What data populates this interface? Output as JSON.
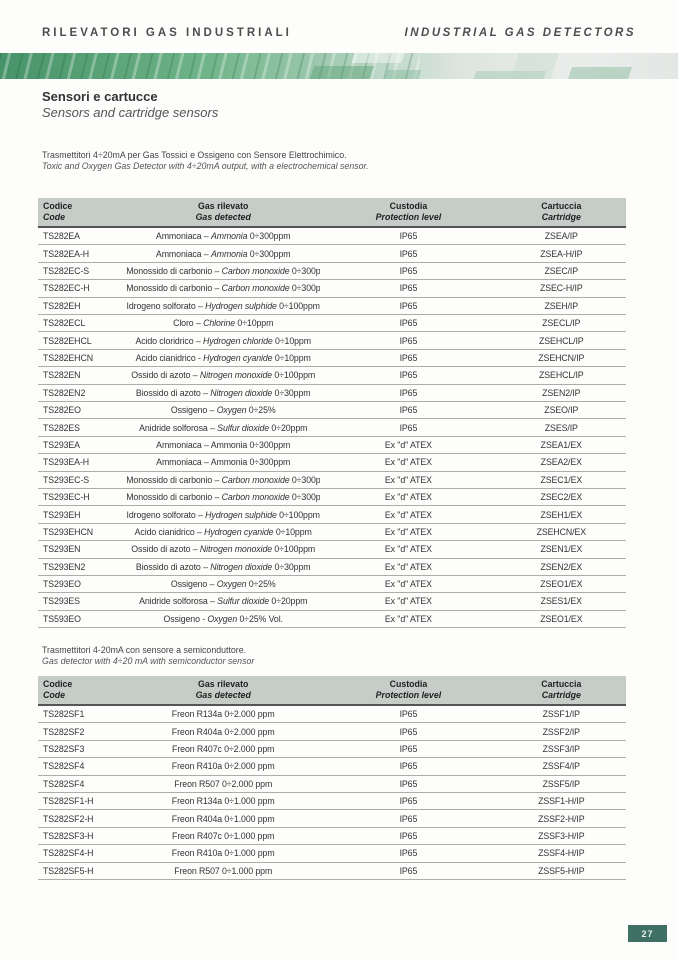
{
  "page": {
    "header_left": "RILEVATORI GAS INDUSTRIALI",
    "header_right": "INDUSTRIAL GAS DETECTORS",
    "title_it": "Sensori e cartucce",
    "title_en": "Sensors and cartridge sensors",
    "page_number": "27"
  },
  "colors": {
    "band_green_dark": "#47936a",
    "band_green_light": "#ebedeb",
    "table_header_bg": "#c6cdc8",
    "row_border": "#a9aeaa",
    "page_num_bg": "#3e7063"
  },
  "section1": {
    "intro_it": "Trasmettitori 4÷20mA per Gas Tossici e Ossigeno con Sensore Elettrochimico.",
    "intro_en": "Toxic and Oxygen Gas Detector with 4÷20mA output, with a electrochemical sensor.",
    "table": {
      "headers": [
        {
          "it": "Codice",
          "en": "Code"
        },
        {
          "it": "Gas rilevato",
          "en": "Gas detected"
        },
        {
          "it": "Custodia",
          "en": "Protection level"
        },
        {
          "it": "Cartuccia",
          "en": "Cartridge"
        }
      ],
      "rows": [
        {
          "code": "TS282EA",
          "gas": [
            [
              "Ammoniaca – ",
              false
            ],
            [
              "Ammonia",
              true
            ],
            [
              " 0÷300ppm",
              false
            ]
          ],
          "protection": "IP65",
          "cartridge": "ZSEA/IP"
        },
        {
          "code": "TS282EA-H",
          "gas": [
            [
              "Ammoniaca – ",
              false
            ],
            [
              "Ammonia",
              true
            ],
            [
              " 0÷300ppm",
              false
            ]
          ],
          "protection": "IP65",
          "cartridge": "ZSEA-H/IP"
        },
        {
          "code": "TS282EC-S",
          "gas": [
            [
              "Monossido di carbonio – ",
              false
            ],
            [
              "Carbon monoxide",
              true
            ],
            [
              " 0÷300ppm",
              false
            ]
          ],
          "protection": "IP65",
          "cartridge": "ZSEC/IP"
        },
        {
          "code": "TS282EC-H",
          "gas": [
            [
              "Monossido di carbonio – ",
              false
            ],
            [
              "Carbon monoxide",
              true
            ],
            [
              " 0÷300ppm",
              false
            ]
          ],
          "protection": "IP65",
          "cartridge": "ZSEC-H/IP"
        },
        {
          "code": "TS282EH",
          "gas": [
            [
              "Idrogeno solforato – ",
              false
            ],
            [
              "Hydrogen sulphide",
              true
            ],
            [
              " 0÷100ppm",
              false
            ]
          ],
          "protection": "IP65",
          "cartridge": "ZSEH/IP"
        },
        {
          "code": "TS282ECL",
          "gas": [
            [
              "Cloro – ",
              false
            ],
            [
              "Chlorine",
              true
            ],
            [
              " 0÷10ppm",
              false
            ]
          ],
          "protection": "IP65",
          "cartridge": "ZSECL/IP"
        },
        {
          "code": "TS282EHCL",
          "gas": [
            [
              "Acido cloridrico – ",
              false
            ],
            [
              "Hydrogen chloride",
              true
            ],
            [
              " 0÷10ppm",
              false
            ]
          ],
          "protection": "IP65",
          "cartridge": "ZSEHCL/IP"
        },
        {
          "code": "TS282EHCN",
          "gas": [
            [
              "Acido cianidrico - ",
              false
            ],
            [
              "Hydrogen cyanide",
              true
            ],
            [
              " 0÷10ppm",
              false
            ]
          ],
          "protection": "IP65",
          "cartridge": "ZSEHCN/IP"
        },
        {
          "code": "TS282EN",
          "gas": [
            [
              "Ossido di azoto – ",
              false
            ],
            [
              "Nitrogen monoxide",
              true
            ],
            [
              " 0÷100ppm",
              false
            ]
          ],
          "protection": "IP65",
          "cartridge": "ZSEHCL/IP"
        },
        {
          "code": "TS282EN2",
          "gas": [
            [
              "Biossido di azoto – ",
              false
            ],
            [
              "Nitrogen dioxide",
              true
            ],
            [
              " 0÷30ppm",
              false
            ]
          ],
          "protection": "IP65",
          "cartridge": "ZSEN2/IP"
        },
        {
          "code": "TS282EO",
          "gas": [
            [
              "Ossigeno – ",
              false
            ],
            [
              "Oxygen",
              true
            ],
            [
              " 0÷25%",
              false
            ]
          ],
          "protection": "IP65",
          "cartridge": "ZSEO/IP"
        },
        {
          "code": "TS282ES",
          "gas": [
            [
              "Anidride solforosa – ",
              false
            ],
            [
              "Sulfur dioxide",
              true
            ],
            [
              " 0÷20ppm",
              false
            ]
          ],
          "protection": "IP65",
          "cartridge": "ZSES/IP"
        },
        {
          "code": "TS293EA",
          "gas": [
            [
              "Ammoniaca – Ammonia 0÷300ppm",
              false
            ]
          ],
          "protection": "Ex \"d\" ATEX",
          "cartridge": "ZSEA1/EX"
        },
        {
          "code": "TS293EA-H",
          "gas": [
            [
              "Ammoniaca – Ammonia 0÷300ppm",
              false
            ]
          ],
          "protection": "Ex \"d\" ATEX",
          "cartridge": "ZSEA2/EX"
        },
        {
          "code": "TS293EC-S",
          "gas": [
            [
              "Monossido di carbonio – ",
              false
            ],
            [
              "Carbon monoxide",
              true
            ],
            [
              " 0÷300ppm",
              false
            ]
          ],
          "protection": "Ex \"d\" ATEX",
          "cartridge": "ZSEC1/EX"
        },
        {
          "code": "TS293EC-H",
          "gas": [
            [
              "Monossido di carbonio – ",
              false
            ],
            [
              "Carbon monoxide",
              true
            ],
            [
              " 0÷300ppm",
              false
            ]
          ],
          "protection": "Ex \"d\" ATEX",
          "cartridge": "ZSEC2/EX"
        },
        {
          "code": "TS293EH",
          "gas": [
            [
              "Idrogeno solforato – ",
              false
            ],
            [
              "Hydrogen sulphide",
              true
            ],
            [
              " 0÷100ppm",
              false
            ]
          ],
          "protection": "Ex \"d\" ATEX",
          "cartridge": "ZSEH1/EX"
        },
        {
          "code": "TS293EHCN",
          "gas": [
            [
              "Acido cianidrico – ",
              false
            ],
            [
              "Hydrogen cyanide",
              true
            ],
            [
              " 0÷10ppm",
              false
            ]
          ],
          "protection": "Ex \"d\" ATEX",
          "cartridge": "ZSEHCN/EX"
        },
        {
          "code": "TS293EN",
          "gas": [
            [
              "Ossido di azoto – ",
              false
            ],
            [
              "Nitrogen monoxide",
              true
            ],
            [
              " 0÷100ppm",
              false
            ]
          ],
          "protection": "Ex \"d\" ATEX",
          "cartridge": "ZSEN1/EX"
        },
        {
          "code": "TS293EN2",
          "gas": [
            [
              "Biossido di azoto – ",
              false
            ],
            [
              "Nitrogen dioxide",
              true
            ],
            [
              " 0÷30ppm",
              false
            ]
          ],
          "protection": "Ex \"d\" ATEX",
          "cartridge": "ZSEN2/EX"
        },
        {
          "code": "TS293EO",
          "gas": [
            [
              "Ossigeno – ",
              false
            ],
            [
              "Oxygen",
              true
            ],
            [
              " 0÷25%",
              false
            ]
          ],
          "protection": "Ex \"d\" ATEX",
          "cartridge": "ZSEO1/EX"
        },
        {
          "code": "TS293ES",
          "gas": [
            [
              "Anidride solforosa – ",
              false
            ],
            [
              "Sulfur dioxide",
              true
            ],
            [
              " 0÷20ppm",
              false
            ]
          ],
          "protection": "Ex \"d\" ATEX",
          "cartridge": "ZSES1/EX"
        },
        {
          "code": "TS593EO",
          "gas": [
            [
              "Ossigeno - ",
              false
            ],
            [
              "Oxygen",
              true
            ],
            [
              " 0÷25% Vol.",
              false
            ]
          ],
          "protection": "Ex \"d\" ATEX",
          "cartridge": "ZSEO1/EX"
        }
      ]
    }
  },
  "section2": {
    "intro_it": "Trasmettitori 4-20mA con sensore a semiconduttore.",
    "intro_en": "Gas detector with 4÷20 mA  with semiconductor sensor",
    "table": {
      "headers": [
        {
          "it": "Codice",
          "en": "Code"
        },
        {
          "it": "Gas rilevato",
          "en": "Gas detected"
        },
        {
          "it": "Custodia",
          "en": "Protection level"
        },
        {
          "it": "Cartuccia",
          "en": "Cartridge"
        }
      ],
      "rows": [
        {
          "code": "TS282SF1",
          "gas": [
            [
              "Freon R134a 0÷2.000 ppm",
              false
            ]
          ],
          "protection": "IP65",
          "cartridge": "ZSSF1/IP"
        },
        {
          "code": "TS282SF2",
          "gas": [
            [
              "Freon R404a 0÷2.000 ppm",
              false
            ]
          ],
          "protection": "IP65",
          "cartridge": "ZSSF2/IP"
        },
        {
          "code": "TS282SF3",
          "gas": [
            [
              "Freon R407c 0÷2.000 ppm",
              false
            ]
          ],
          "protection": "IP65",
          "cartridge": "ZSSF3/IP"
        },
        {
          "code": "TS282SF4",
          "gas": [
            [
              "Freon R410a 0÷2.000 ppm",
              false
            ]
          ],
          "protection": "IP65",
          "cartridge": "ZSSF4/IP"
        },
        {
          "code": "TS282SF4",
          "gas": [
            [
              "Freon R507 0÷2.000 ppm",
              false
            ]
          ],
          "protection": "IP65",
          "cartridge": "ZSSF5/IP"
        },
        {
          "code": "TS282SF1-H",
          "gas": [
            [
              "Freon R134a 0÷1.000 ppm",
              false
            ]
          ],
          "protection": "IP65",
          "cartridge": "ZSSF1-H/IP"
        },
        {
          "code": "TS282SF2-H",
          "gas": [
            [
              "Freon R404a 0÷1.000 ppm",
              false
            ]
          ],
          "protection": "IP65",
          "cartridge": "ZSSF2-H/IP"
        },
        {
          "code": "TS282SF3-H",
          "gas": [
            [
              "Freon R407c 0÷1.000 ppm",
              false
            ]
          ],
          "protection": "IP65",
          "cartridge": "ZSSF3-H/IP"
        },
        {
          "code": "TS282SF4-H",
          "gas": [
            [
              "Freon R410a 0÷1.000 ppm",
              false
            ]
          ],
          "protection": "IP65",
          "cartridge": "ZSSF4-H/IP"
        },
        {
          "code": "TS282SF5-H",
          "gas": [
            [
              "Freon R507 0÷1.000 ppm",
              false
            ]
          ],
          "protection": "IP65",
          "cartridge": "ZSSF5-H/IP"
        }
      ]
    }
  }
}
